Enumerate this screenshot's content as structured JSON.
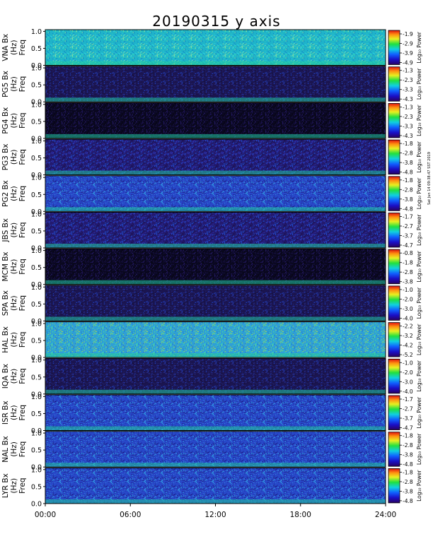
{
  "title": "20190315 y axis",
  "credit": "Sat Jun 14 09:38:47 SST 2019",
  "chart_data": {
    "type": "heatmap",
    "date": "20190315",
    "component": "y axis",
    "x_range_hours": [
      0,
      24
    ],
    "x_ticks": [
      "00:00",
      "06:00",
      "12:00",
      "18:00",
      "24:00"
    ],
    "y_range_hz": [
      0.0,
      1.05
    ],
    "y_ticks": [
      "0.0",
      "0.5",
      "1.0"
    ],
    "colorbar_label": "Log₁₀ Power",
    "panels": [
      {
        "station": "VNA",
        "ylabel_top": "VNA Bx",
        "ylabel_mid": "(Hz)",
        "ylabel_bot": "Freq",
        "cbar_ticks": [
          "-1.9",
          "-2.9",
          "-3.9",
          "-4.9"
        ],
        "style": "cyan"
      },
      {
        "station": "PG5",
        "ylabel_top": "PG5 Bx",
        "ylabel_mid": "(Hz)",
        "ylabel_bot": "Freq",
        "cbar_ticks": [
          "-1.3",
          "-2.3",
          "-3.3",
          "-4.3"
        ],
        "style": "dark"
      },
      {
        "station": "PG4",
        "ylabel_top": "PG4 Bx",
        "ylabel_mid": "(Hz)",
        "ylabel_bot": "Freq",
        "cbar_ticks": [
          "-1.3",
          "-2.3",
          "-3.3",
          "-4.3"
        ],
        "style": "black"
      },
      {
        "station": "PG3",
        "ylabel_top": "PG3 Bx",
        "ylabel_mid": "(Hz)",
        "ylabel_bot": "Freq",
        "cbar_ticks": [
          "-1.8",
          "-2.8",
          "-3.8",
          "-4.8"
        ],
        "style": "purple"
      },
      {
        "station": "PG2",
        "ylabel_top": "PG2 Bx",
        "ylabel_mid": "(Hz)",
        "ylabel_bot": "Freq",
        "cbar_ticks": [
          "-1.8",
          "-2.8",
          "-3.8",
          "-4.8"
        ],
        "style": "blue"
      },
      {
        "station": "JBS",
        "ylabel_top": "JBS Bx",
        "ylabel_mid": "(Hz)",
        "ylabel_bot": "Freq",
        "cbar_ticks": [
          "-1.7",
          "-2.7",
          "-3.7",
          "-4.7"
        ],
        "style": "purple"
      },
      {
        "station": "MCM",
        "ylabel_top": "MCM Bx",
        "ylabel_mid": "(Hz)",
        "ylabel_bot": "Freq",
        "cbar_ticks": [
          "-0.8",
          "-1.8",
          "-2.8",
          "-3.8"
        ],
        "style": "black"
      },
      {
        "station": "SPA",
        "ylabel_top": "SPA Bx",
        "ylabel_mid": "(Hz)",
        "ylabel_bot": "Freq",
        "cbar_ticks": [
          "-1.0",
          "-2.0",
          "-3.0",
          "-4.0"
        ],
        "style": "dark"
      },
      {
        "station": "HAL",
        "ylabel_top": "HAL Bx",
        "ylabel_mid": "(Hz)",
        "ylabel_bot": "Freq",
        "cbar_ticks": [
          "-2.2",
          "-3.2",
          "-4.2",
          "-5.2"
        ],
        "style": "green"
      },
      {
        "station": "IQA",
        "ylabel_top": "IQA Bx",
        "ylabel_mid": "(Hz)",
        "ylabel_bot": "Freq",
        "cbar_ticks": [
          "-1.0",
          "-2.0",
          "-3.0",
          "-4.0"
        ],
        "style": "dark"
      },
      {
        "station": "ISR",
        "ylabel_top": "ISR Bx",
        "ylabel_mid": "(Hz)",
        "ylabel_bot": "Freq",
        "cbar_ticks": [
          "-1.7",
          "-2.7",
          "-3.7",
          "-4.7"
        ],
        "style": "blue"
      },
      {
        "station": "NAL",
        "ylabel_top": "NAL Bx",
        "ylabel_mid": "(Hz)",
        "ylabel_bot": "Freq",
        "cbar_ticks": [
          "-1.8",
          "-2.8",
          "-3.8",
          "-4.8"
        ],
        "style": "blue"
      },
      {
        "station": "LYR",
        "ylabel_top": "LYR Bx",
        "ylabel_mid": "(Hz)",
        "ylabel_bot": "Freq",
        "cbar_ticks": [
          "-1.8",
          "-2.8",
          "-3.8",
          "-4.8"
        ],
        "style": "blue"
      }
    ]
  }
}
